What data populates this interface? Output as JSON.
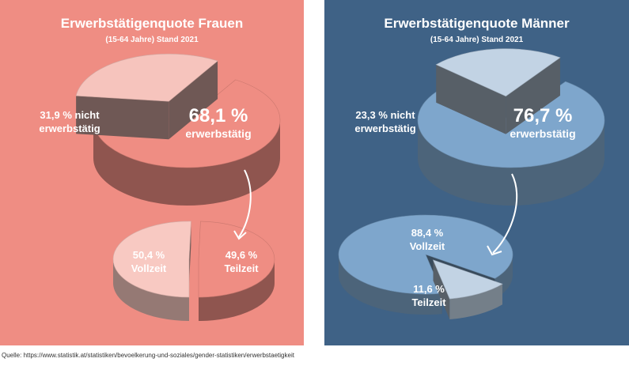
{
  "colors": {
    "women_bg": "#ef8d83",
    "men_bg": "#3f6286"
  },
  "source": "Quelle: https://www.statistik.at/statistiken/bevoelkerung-und-soziales/gender-statistiken/erwerbstaetigkeit",
  "chart_data": [
    {
      "type": "pie",
      "title": "Erwerbstätigenquote Frauen",
      "subtitle": "(15-64 Jahre) Stand 2021",
      "slices": [
        {
          "label": "erwerbstätig",
          "value": 68.1,
          "display": "68,1 %",
          "color": "#ef8d83"
        },
        {
          "label": "nicht erwerbstätig",
          "value": 31.9,
          "display": "31,9 % nicht",
          "label2": "erwerbstätig",
          "color": "#f6c4bd"
        }
      ],
      "breakdown": {
        "type": "pie",
        "slices": [
          {
            "label": "Vollzeit",
            "value": 50.4,
            "display": "50,4 %",
            "color": "#f8c9c2"
          },
          {
            "label": "Teilzeit",
            "value": 49.6,
            "display": "49,6 %",
            "color": "#ef8d83"
          }
        ]
      }
    },
    {
      "type": "pie",
      "title": "Erwerbstätigenquote Männer",
      "subtitle": "(15-64 Jahre) Stand 2021",
      "slices": [
        {
          "label": "erwerbstätig",
          "value": 76.7,
          "display": "76,7 %",
          "color": "#7ea6cc"
        },
        {
          "label": "nicht erwerbstätig",
          "value": 23.3,
          "display": "23,3 % nicht",
          "label2": "erwerbstätig",
          "color": "#c2d3e4"
        }
      ],
      "breakdown": {
        "type": "pie",
        "slices": [
          {
            "label": "Vollzeit",
            "value": 88.4,
            "display": "88,4 %",
            "color": "#7ea6cc"
          },
          {
            "label": "Teilzeit",
            "value": 11.6,
            "display": "11,6 %",
            "color": "#c2d3e4"
          }
        ]
      }
    }
  ]
}
